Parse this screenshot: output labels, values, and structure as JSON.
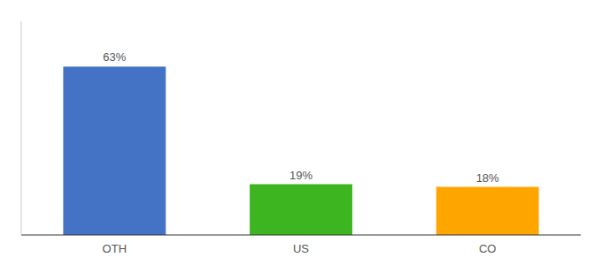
{
  "chart_data": {
    "type": "bar",
    "categories": [
      "OTH",
      "US",
      "CO"
    ],
    "values": [
      63,
      19,
      18
    ],
    "value_labels": [
      "63%",
      "19%",
      "18%"
    ],
    "colors": [
      "#4472C4",
      "#3CB521",
      "#FFA500"
    ],
    "ylim": [
      0,
      80
    ],
    "data_labels": true,
    "tick_labels": "x"
  }
}
